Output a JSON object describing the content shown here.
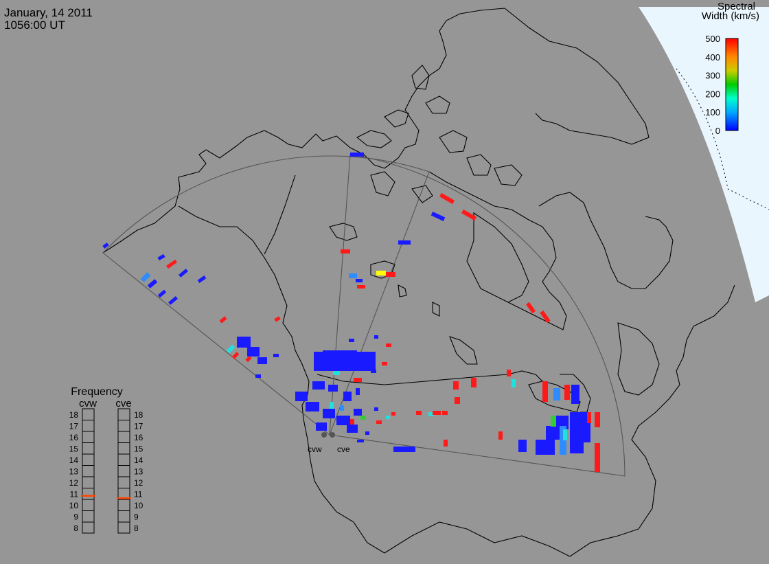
{
  "header": {
    "date": "January, 14 2011",
    "time": "1056:00 UT"
  },
  "colors": {
    "land": "#969696",
    "outer_sky": "#eaf6fd",
    "coast": "#000000",
    "fov_outline": "#555555",
    "data_blue": "#1a1aff",
    "data_lightblue": "#2f8cff",
    "data_cyan": "#22e0e0",
    "data_green": "#33cc33",
    "data_yellow": "#ffff00",
    "data_red": "#ff1a1a",
    "freq_marker": "#ff4400"
  },
  "colorbar": {
    "title_line1": "Spectral",
    "title_line2": "Width (km/s)",
    "ticks": [
      "500",
      "400",
      "300",
      "200",
      "100",
      "0"
    ]
  },
  "radars": {
    "west_label": "cvw",
    "east_label": "cve"
  },
  "frequency_panel": {
    "title": "Frequency",
    "west_label": "cvw",
    "east_label": "cve",
    "ticks": [
      "18",
      "17",
      "16",
      "15",
      "14",
      "13",
      "12",
      "11",
      "10",
      "9",
      "8"
    ],
    "cvw_mhz": 10.8,
    "cve_mhz": 10.6
  }
}
